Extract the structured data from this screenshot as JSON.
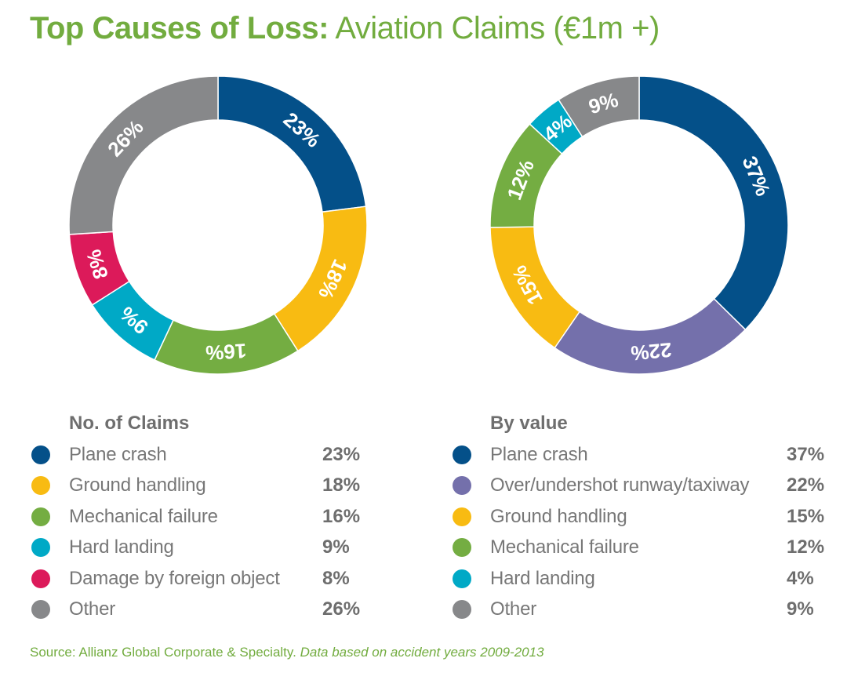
{
  "title": {
    "bold": "Top Causes of Loss:",
    "light": " Aviation Claims (€1m +)"
  },
  "chart_data": [
    {
      "type": "pie",
      "subtype": "donut",
      "title": "No. of Claims",
      "unit": "%",
      "start": "12 o'clock, clockwise",
      "categories": [
        "Plane crash",
        "Ground handling",
        "Mechanical failure",
        "Hard landing",
        "Damage by foreign object",
        "Other"
      ],
      "values": [
        23,
        18,
        16,
        9,
        8,
        26
      ],
      "labels": [
        "23%",
        "18%",
        "16%",
        "9%",
        "8%",
        "26%"
      ],
      "colors": [
        "#045089",
        "#f8bb12",
        "#74ad42",
        "#00a9c6",
        "#dc1a5a",
        "#87888a"
      ],
      "legend": "below"
    },
    {
      "type": "pie",
      "subtype": "donut",
      "title": "By value",
      "unit": "%",
      "start": "12 o'clock, clockwise",
      "categories": [
        "Plane crash",
        "Over/undershot runway/taxiway",
        "Ground handling",
        "Mechanical failure",
        "Hard landing",
        "Other"
      ],
      "values": [
        37,
        22,
        15,
        12,
        4,
        9
      ],
      "labels": [
        "37%",
        "22%",
        "15%",
        "12%",
        "4%",
        "9%"
      ],
      "colors": [
        "#045089",
        "#7470ab",
        "#f8bb12",
        "#74ad42",
        "#00a9c6",
        "#87888a"
      ],
      "legend": "below"
    }
  ],
  "legends": [
    {
      "title": "No. of Claims",
      "items": [
        {
          "label": "Plane crash",
          "value": "23%",
          "color": "#045089"
        },
        {
          "label": "Ground handling",
          "value": "18%",
          "color": "#f8bb12"
        },
        {
          "label": "Mechanical failure",
          "value": "16%",
          "color": "#74ad42"
        },
        {
          "label": "Hard landing",
          "value": "9%",
          "color": "#00a9c6"
        },
        {
          "label": "Damage by foreign object",
          "value": "8%",
          "color": "#dc1a5a"
        },
        {
          "label": "Other",
          "value": "26%",
          "color": "#87888a"
        }
      ]
    },
    {
      "title": "By value",
      "items": [
        {
          "label": "Plane crash",
          "value": "37%",
          "color": "#045089"
        },
        {
          "label": "Over/undershot runway/taxiway",
          "value": "22%",
          "color": "#7470ab"
        },
        {
          "label": "Ground handling",
          "value": "15%",
          "color": "#f8bb12"
        },
        {
          "label": "Mechanical failure",
          "value": "12%",
          "color": "#74ad42"
        },
        {
          "label": "Hard landing",
          "value": "4%",
          "color": "#00a9c6"
        },
        {
          "label": "Other",
          "value": "9%",
          "color": "#87888a"
        }
      ]
    }
  ],
  "source": {
    "text": "Source: Allianz Global Corporate & Specialty. ",
    "italic": "Data based on accident years 2009-2013"
  },
  "colors": {
    "title_green": "#72ac3f",
    "legend_text": "#777777"
  }
}
